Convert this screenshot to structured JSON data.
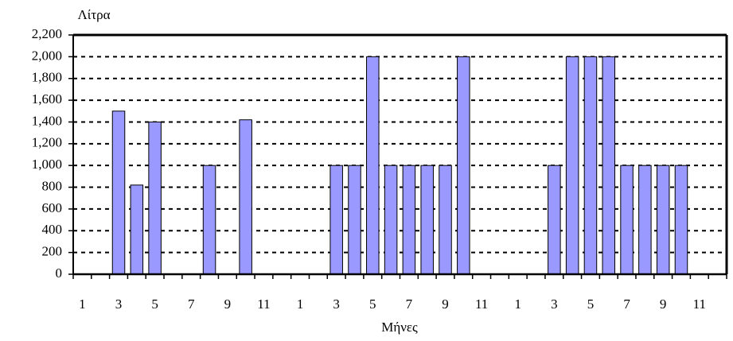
{
  "chart_data": {
    "type": "bar",
    "y_label": "Λίτρα",
    "x_label": "Μήνες",
    "categories": [
      "1",
      null,
      "3",
      null,
      "5",
      null,
      "7",
      null,
      "9",
      null,
      "11",
      null,
      "1",
      null,
      "3",
      null,
      "5",
      null,
      "7",
      null,
      "9",
      null,
      "11",
      null,
      "1",
      null,
      "3",
      null,
      "5",
      null,
      "7",
      null,
      "9",
      null,
      "11",
      null
    ],
    "values": [
      null,
      null,
      1500,
      820,
      1400,
      null,
      null,
      1000,
      null,
      1420,
      null,
      null,
      null,
      null,
      1000,
      1000,
      2000,
      1000,
      1000,
      1000,
      1000,
      2000,
      null,
      null,
      null,
      null,
      1000,
      2000,
      2000,
      2000,
      1000,
      1000,
      1000,
      1000,
      null,
      null
    ],
    "color": "#9999ff",
    "ylim": [
      0,
      2200
    ],
    "yticks": [
      0,
      200,
      400,
      600,
      800,
      {
        "value": 1000,
        "label": "1,000"
      },
      {
        "value": 1200,
        "label": "1,200"
      },
      {
        "value": 1400,
        "label": "1,400"
      },
      {
        "value": 1600,
        "label": "1,600"
      },
      {
        "value": 1800,
        "label": "1,800"
      },
      {
        "value": 2000,
        "label": "2,000"
      },
      {
        "value": 2200,
        "label": "2,200"
      }
    ],
    "grid": true
  }
}
